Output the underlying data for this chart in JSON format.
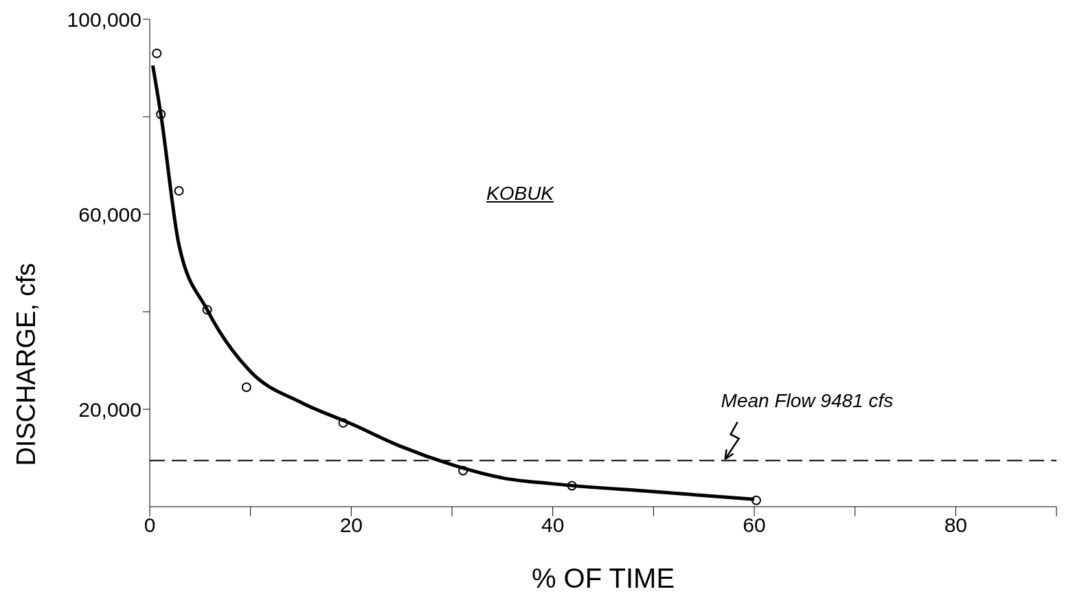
{
  "chart_data": {
    "type": "scatter",
    "xlabel": "% OF TIME",
    "ylabel": "DISCHARGE, cfs",
    "annotations": [
      "KOBUK"
    ],
    "xlim": [
      0,
      90
    ],
    "xticks": [
      0,
      {
        "value": 10,
        "label": null
      },
      20,
      {
        "value": 30,
        "label": null
      },
      40,
      {
        "value": 50,
        "label": null
      },
      60,
      {
        "value": 70,
        "label": null
      },
      80,
      {
        "value": 90,
        "label": null
      }
    ],
    "ylim": [
      0,
      100000
    ],
    "yticks": [
      {
        "value": 20000,
        "label": "20,000"
      },
      {
        "value": 40000,
        "label": null
      },
      {
        "value": 60000,
        "label": "60,000"
      },
      {
        "value": 80000,
        "label": null
      },
      {
        "value": 100000,
        "label": "100,000"
      }
    ],
    "series": [
      {
        "color": "#000000",
        "marker": "circle",
        "x": [
          0.7,
          1.1,
          2.9,
          5.7,
          9.6,
          19.2,
          31.1,
          41.9,
          60.2
        ],
        "values": [
          93000,
          80500,
          64800,
          40400,
          24500,
          17200,
          7400,
          4300,
          1300
        ]
      },
      {
        "type": "line",
        "color": "#000000",
        "marker": "none",
        "line_style": "solid",
        "x": [
          0.3,
          1.1,
          2.9,
          5.7,
          10,
          15,
          20,
          25,
          30,
          35,
          40,
          50,
          60
        ],
        "values": [
          90500,
          80500,
          53700,
          40400,
          27700,
          21400,
          17000,
          12300,
          8600,
          5900,
          4700,
          3100,
          1500
        ]
      }
    ],
    "ref_lines": [
      {
        "axis": "y",
        "value": 9481,
        "label": "Mean Flow 9481 cfs",
        "line_style": "dashed",
        "color": "#000000"
      }
    ]
  }
}
